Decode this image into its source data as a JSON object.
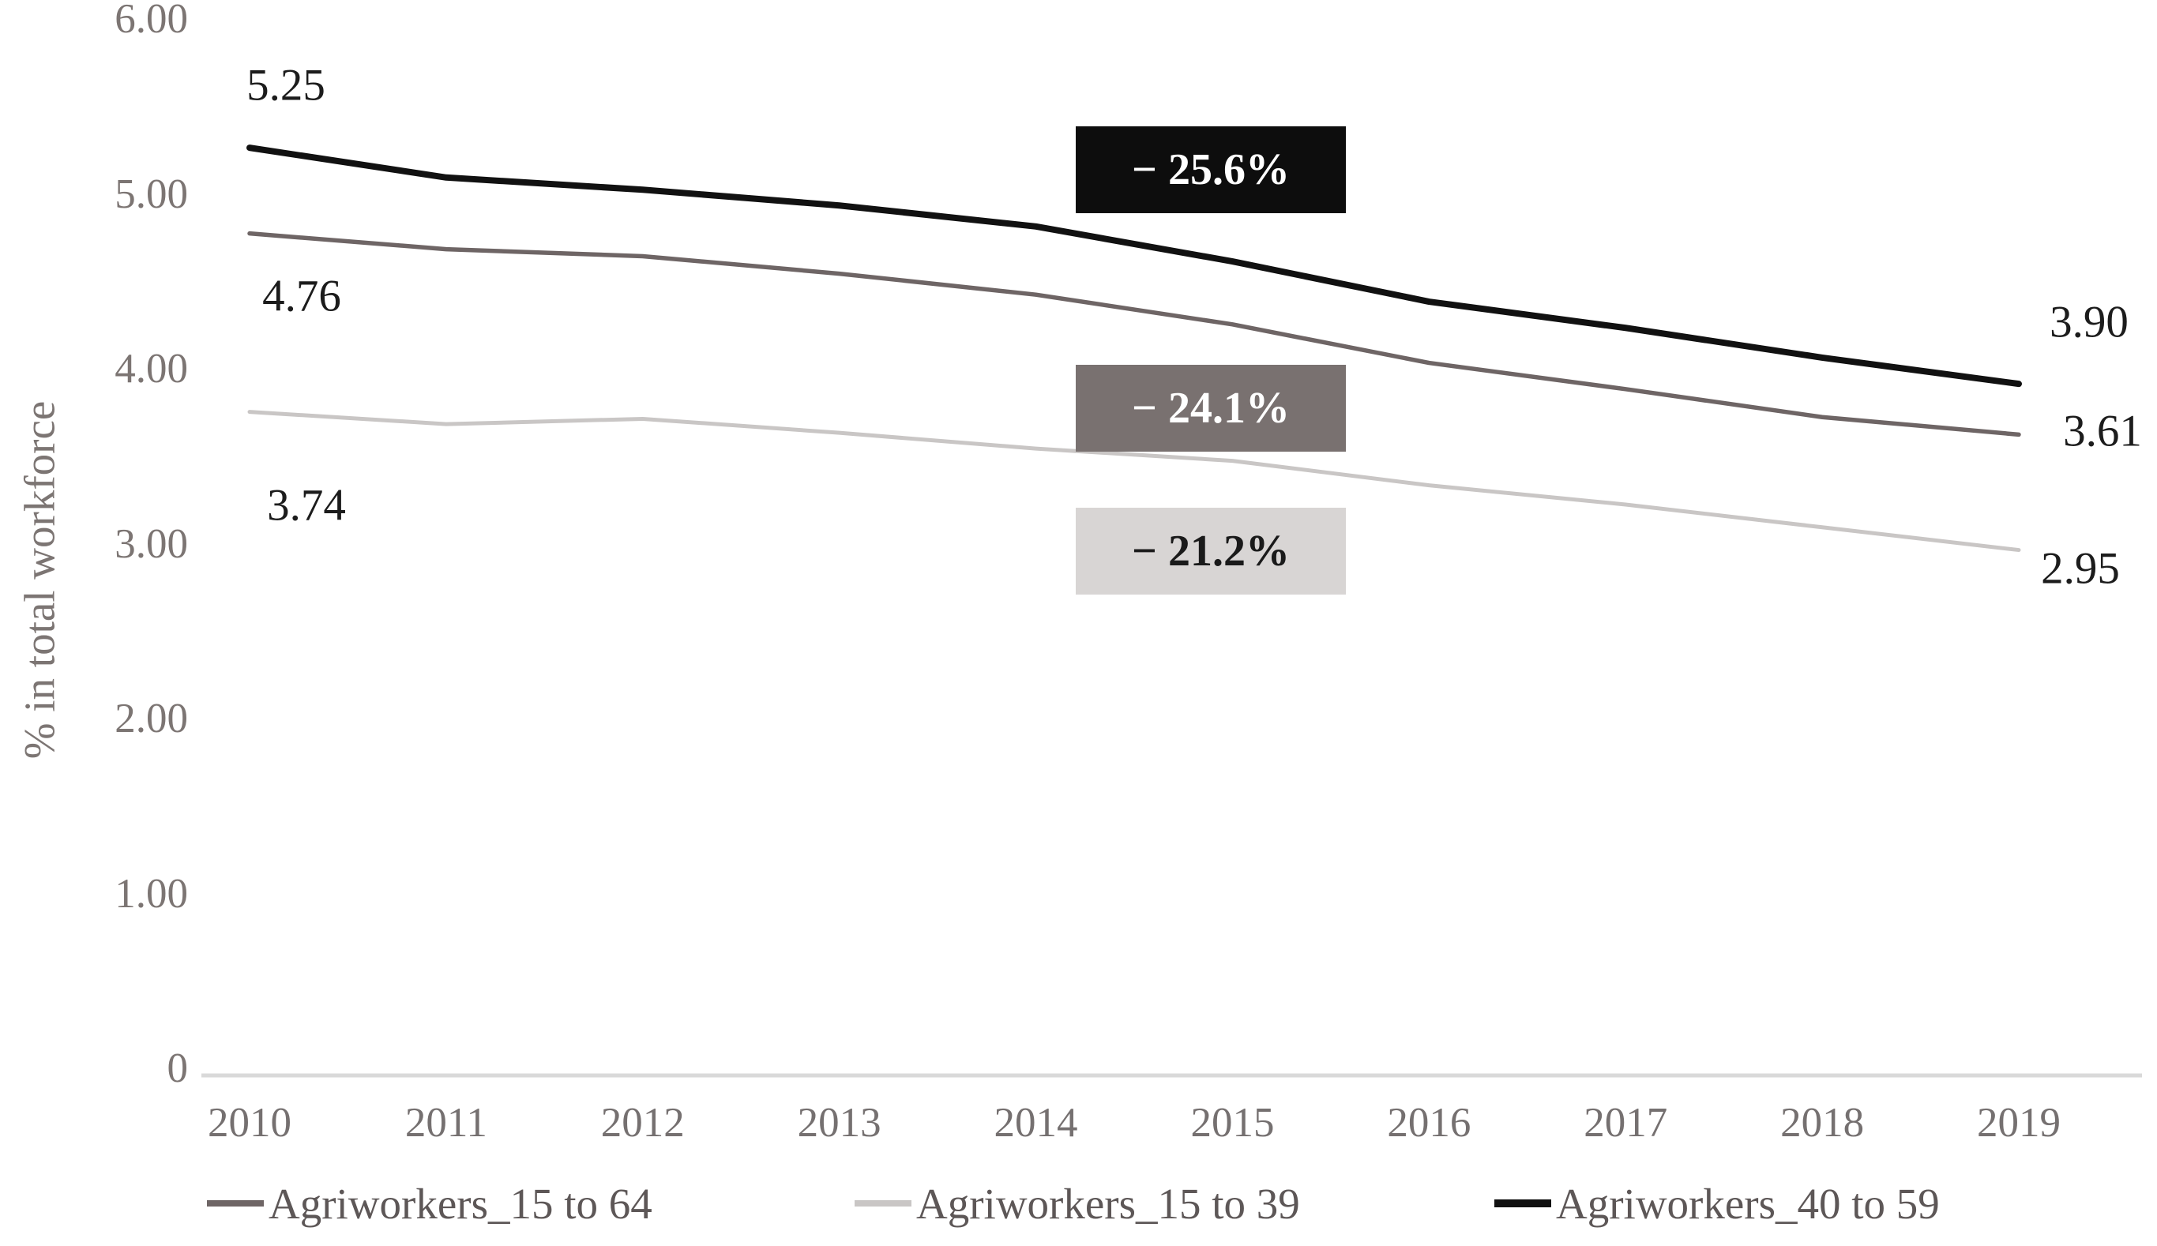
{
  "chart_data": {
    "type": "line",
    "title": "",
    "xlabel": "",
    "ylabel": "% in total workforce",
    "x": [
      2010,
      2011,
      2012,
      2013,
      2014,
      2015,
      2016,
      2017,
      2018,
      2019
    ],
    "x_tick_labels": [
      "2010",
      "2011",
      "2012",
      "2013",
      "2014",
      "2015",
      "2016",
      "2017",
      "2018",
      "2019"
    ],
    "y_tick_labels": [
      "6.00",
      "5.00",
      "4.00",
      "3.00",
      "2.00",
      "1.00",
      "0"
    ],
    "ylim": [
      0,
      6
    ],
    "grid": false,
    "legend_position": "bottom",
    "series": [
      {
        "name": "Agriworkers_15 to 64",
        "color": "#6e6565",
        "values": [
          4.76,
          4.67,
          4.63,
          4.53,
          4.41,
          4.24,
          4.02,
          3.87,
          3.71,
          3.61
        ],
        "start_label": "4.76",
        "end_label": "3.61"
      },
      {
        "name": "Agriworkers_15 to 39",
        "color": "#c9c6c5",
        "values": [
          3.74,
          3.67,
          3.7,
          3.62,
          3.53,
          3.46,
          3.32,
          3.21,
          3.08,
          2.95
        ],
        "start_label": "3.74",
        "end_label": "2.95"
      },
      {
        "name": "Agriworkers_40 to 59",
        "color": "#111111",
        "values": [
          5.25,
          5.08,
          5.01,
          4.92,
          4.8,
          4.6,
          4.37,
          4.22,
          4.05,
          3.9
        ],
        "start_label": "5.25",
        "end_label": "3.90"
      }
    ],
    "annotations": [
      {
        "label": "− 25.6%",
        "series": "Agriworkers_40 to 59",
        "bg": "#0d0d0d",
        "fg": "#ffffff"
      },
      {
        "label": "− 24.1%",
        "series": "Agriworkers_15 to 64",
        "bg": "#797170",
        "fg": "#ffffff"
      },
      {
        "label": "− 21.2%",
        "series": "Agriworkers_15 to 39",
        "bg": "#d8d5d4",
        "fg": "#1a1a1a"
      }
    ],
    "axis_line_color": "#d9d9d9",
    "tick_label_color": "#7c7573",
    "data_label_color": "#1c1c1c"
  }
}
